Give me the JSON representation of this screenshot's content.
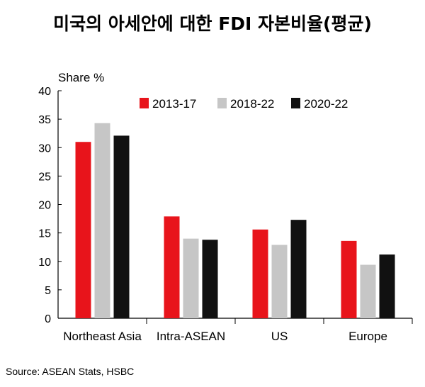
{
  "title": "미국의 아세안에 대한 FDI 자본비율(평균)",
  "source": "Source: ASEAN Stats, HSBC",
  "chart_data": {
    "type": "bar",
    "title": "미국의 아세안에 대한 FDI 자본비율(평균)",
    "ylabel": "Share %",
    "xlabel": "",
    "ylim": [
      0,
      40
    ],
    "yticks": [
      0,
      5,
      10,
      15,
      20,
      25,
      30,
      35,
      40
    ],
    "categories": [
      "Northeast Asia",
      "Intra-ASEAN",
      "US",
      "Europe"
    ],
    "series": [
      {
        "name": "2013-17",
        "color": "#e8141b",
        "values": [
          31.0,
          17.9,
          15.6,
          13.6
        ]
      },
      {
        "name": "2018-22",
        "color": "#c6c6c6",
        "values": [
          34.3,
          14.0,
          12.9,
          9.4
        ]
      },
      {
        "name": "2020-22",
        "color": "#111111",
        "values": [
          32.1,
          13.8,
          17.3,
          11.2
        ]
      }
    ],
    "legend_position": "top-right",
    "grid": false
  }
}
